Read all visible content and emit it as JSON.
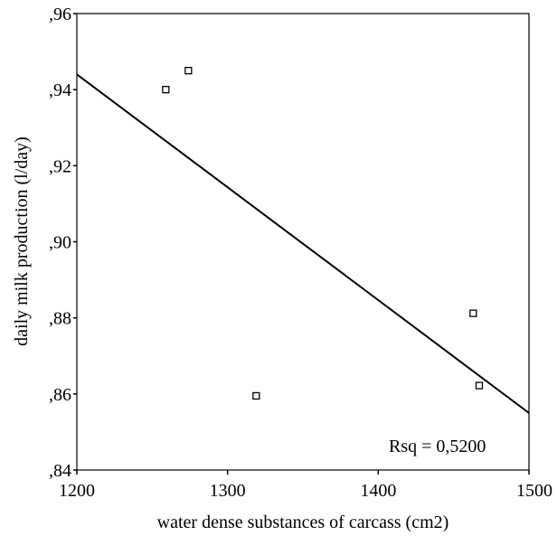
{
  "chart_data": {
    "type": "scatter",
    "xlabel": "water dense substances of carcass (cm2)",
    "ylabel": "daily milk production (l/day)",
    "xlim": [
      1200,
      1500
    ],
    "ylim": [
      0.84,
      0.96
    ],
    "x_ticks": [
      1200,
      1300,
      1400,
      1500
    ],
    "x_tick_labels": [
      "1200",
      "1300",
      "1400",
      "1500"
    ],
    "y_ticks": [
      0.84,
      0.86,
      0.88,
      0.9,
      0.92,
      0.94,
      0.96
    ],
    "y_tick_labels": [
      ",84",
      ",86",
      ",88",
      ",90",
      ",92",
      ",94",
      ",96"
    ],
    "grid": false,
    "points": [
      {
        "x": 1259,
        "y": 0.94
      },
      {
        "x": 1274,
        "y": 0.945
      },
      {
        "x": 1319,
        "y": 0.8595
      },
      {
        "x": 1463,
        "y": 0.8812
      },
      {
        "x": 1467,
        "y": 0.8622
      }
    ],
    "fit_line": {
      "type": "linear",
      "start": {
        "x": 1200,
        "y": 0.944
      },
      "end": {
        "x": 1500,
        "y": 0.855
      }
    },
    "annotation": "Rsq = 0,5200",
    "colors": {
      "line": "#000000",
      "marker_stroke": "#000000",
      "marker_fill": "#ffffff",
      "background": "#ffffff"
    }
  }
}
